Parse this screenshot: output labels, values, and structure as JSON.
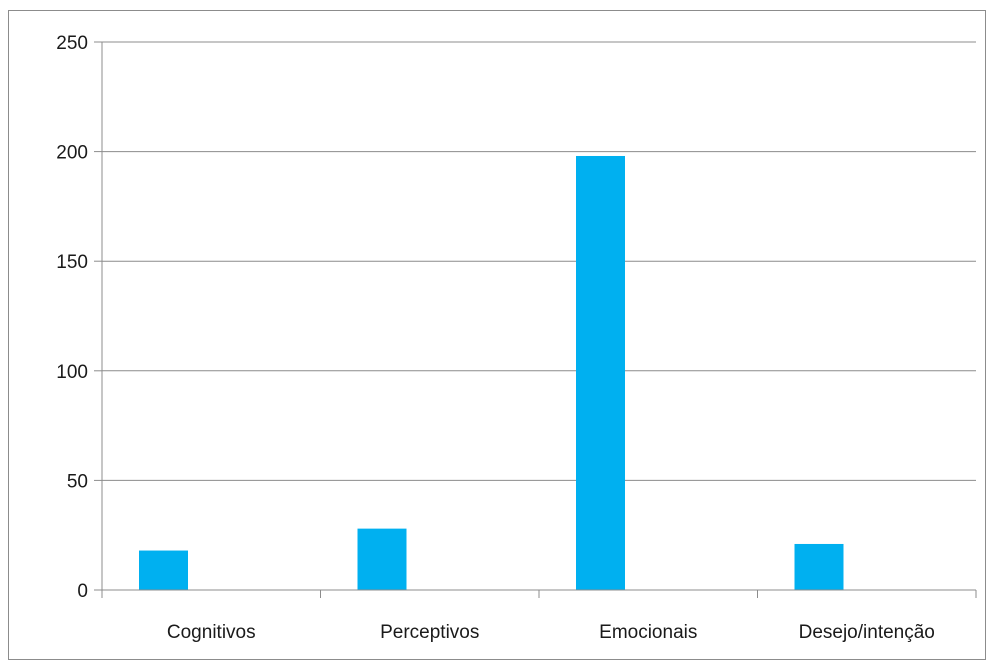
{
  "chart_data": {
    "type": "bar",
    "title": "",
    "xlabel": "",
    "ylabel": "",
    "categories": [
      "Cognitivos",
      "Perceptivos",
      "Emocionais",
      "Desejo/intenção"
    ],
    "series": [
      {
        "values": [
          18,
          28,
          198,
          21
        ]
      }
    ],
    "ylim": [
      0,
      250
    ],
    "yticks": [
      0,
      50,
      100,
      150,
      200,
      250
    ],
    "grid": true,
    "legend": "none",
    "colors": {
      "bar": "#00b0f0",
      "grid": "#8c8c8c",
      "axis": "#8c8c8c",
      "text": "#1a1a1a"
    }
  }
}
